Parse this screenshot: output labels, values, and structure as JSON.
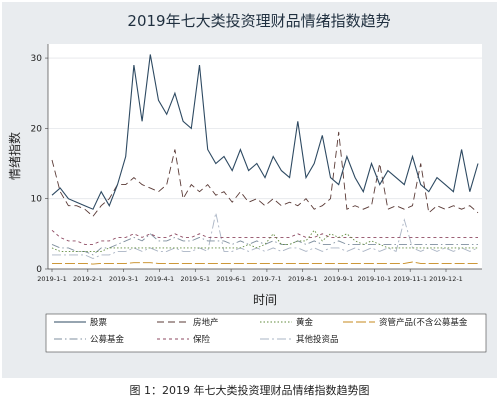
{
  "caption": "图 1：2019 年七大类投资理财品情绪指数趋势图",
  "chart_data": {
    "type": "line",
    "title": "2019年七大类投资理财品情绪指数趋势",
    "xlabel": "时间",
    "ylabel": "情绪指数",
    "ylim": [
      0,
      32
    ],
    "yticks": [
      0,
      10,
      20,
      30
    ],
    "grid": true,
    "legend": "bottom",
    "x_ticks": [
      "2019-1-1",
      "2019-2-1",
      "2019-3-1",
      "2019-4-1",
      "2019-5-1",
      "2019-6-1",
      "2019-7-1",
      "2019-8-1",
      "2019-9-1",
      "2019-10-1",
      "2019-11-1",
      "2019-12-1"
    ],
    "x": [
      "2019-1-1",
      "2019-1-8",
      "2019-1-15",
      "2019-1-22",
      "2019-1-29",
      "2019-2-5",
      "2019-2-12",
      "2019-2-19",
      "2019-2-26",
      "2019-3-5",
      "2019-3-12",
      "2019-3-19",
      "2019-3-26",
      "2019-4-2",
      "2019-4-9",
      "2019-4-16",
      "2019-4-23",
      "2019-4-30",
      "2019-5-7",
      "2019-5-14",
      "2019-5-21",
      "2019-5-28",
      "2019-6-4",
      "2019-6-11",
      "2019-6-18",
      "2019-6-25",
      "2019-7-2",
      "2019-7-9",
      "2019-7-16",
      "2019-7-23",
      "2019-7-30",
      "2019-8-6",
      "2019-8-13",
      "2019-8-20",
      "2019-8-27",
      "2019-9-3",
      "2019-9-10",
      "2019-9-17",
      "2019-9-24",
      "2019-10-1",
      "2019-10-8",
      "2019-10-15",
      "2019-10-22",
      "2019-10-29",
      "2019-11-5",
      "2019-11-12",
      "2019-11-19",
      "2019-11-26",
      "2019-12-3",
      "2019-12-10",
      "2019-12-17",
      "2019-12-24",
      "2019-12-31"
    ],
    "series": [
      {
        "name": "股票",
        "color": "#2e4a62",
        "dash": "solid",
        "values": [
          10.5,
          11.5,
          10,
          9.5,
          9,
          8.5,
          11,
          9,
          12,
          16,
          29,
          21,
          30.5,
          24,
          22,
          25,
          21,
          20,
          29,
          17,
          15,
          16,
          14,
          17,
          14,
          15,
          13,
          16,
          14,
          13,
          21,
          13,
          15,
          19,
          13,
          12,
          16,
          13,
          11,
          15,
          12,
          14,
          13,
          12,
          16,
          12,
          11,
          13,
          12,
          11,
          17,
          11,
          15
        ]
      },
      {
        "name": "房地产",
        "color": "#5a3a36",
        "dash": "7,4",
        "values": [
          15.5,
          11,
          9,
          9,
          8.5,
          7.5,
          9,
          10,
          12,
          12,
          13,
          12,
          11.5,
          11,
          12,
          17,
          10,
          12,
          11,
          12,
          10.5,
          11,
          9.5,
          11,
          9.5,
          10,
          9,
          10,
          9,
          9.5,
          9,
          10,
          8.5,
          9,
          10,
          19.5,
          8.5,
          9,
          8.5,
          9,
          15,
          8.5,
          9,
          8.5,
          9,
          15,
          8,
          9,
          8.5,
          9,
          8.5,
          9,
          8
        ]
      },
      {
        "name": "黄金",
        "color": "#5f8a3a",
        "dash": "1.5,2",
        "values": [
          3,
          2.5,
          2.5,
          2.5,
          2.5,
          2.5,
          2.5,
          3,
          3,
          3,
          3,
          3,
          3,
          3,
          3,
          3,
          3,
          3,
          3,
          3,
          3,
          3,
          3,
          3,
          3.5,
          3,
          3.5,
          5,
          3.5,
          3.5,
          4,
          4,
          5.5,
          4,
          5,
          4.5,
          5,
          4,
          3.5,
          4,
          3.5,
          3,
          3,
          3,
          3,
          3,
          3,
          3,
          3,
          3,
          3,
          3,
          3
        ]
      },
      {
        "name": "资管产品(不含公募基金",
        "color": "#c68a1e",
        "dash": "10,3",
        "values": [
          0.8,
          0.8,
          0.8,
          0.8,
          0.8,
          0.7,
          0.8,
          0.8,
          0.8,
          0.8,
          0.9,
          0.9,
          0.9,
          0.8,
          0.8,
          0.8,
          0.8,
          0.8,
          0.8,
          0.8,
          0.8,
          0.8,
          0.8,
          0.8,
          0.8,
          0.8,
          0.8,
          0.8,
          0.8,
          0.8,
          0.8,
          0.8,
          0.8,
          0.8,
          0.8,
          0.8,
          0.8,
          0.8,
          0.8,
          0.8,
          0.8,
          0.8,
          0.8,
          0.8,
          1,
          0.8,
          0.8,
          0.8,
          0.8,
          0.8,
          0.8,
          0.8,
          0.8
        ]
      },
      {
        "name": "公募基金",
        "color": "#7f8f9f",
        "dash": "8,3,1.5,3",
        "values": [
          3.5,
          3,
          3,
          2.5,
          2.5,
          2,
          3,
          3,
          3.5,
          4,
          4.5,
          4,
          5,
          4,
          4,
          4.5,
          4,
          4,
          4.5,
          4,
          4,
          4,
          3.5,
          4,
          3.5,
          4,
          3.5,
          4,
          3.5,
          3.5,
          4,
          3.5,
          4,
          3.5,
          3.5,
          4,
          3.5,
          3.5,
          3.5,
          3.5,
          3.5,
          3.5,
          3.5,
          3.5,
          3.5,
          3.5,
          3.5,
          3.5,
          3.5,
          3.5,
          3.5,
          3.5,
          3.5
        ]
      },
      {
        "name": "保险",
        "color": "#8e4a62",
        "dash": "3,3",
        "values": [
          5.5,
          4.5,
          4,
          4,
          3.5,
          3.5,
          4,
          4,
          4.5,
          4.5,
          5,
          4.5,
          5,
          4.5,
          4.5,
          5,
          4.5,
          4.5,
          5,
          4.5,
          4.5,
          4.5,
          4.5,
          4.5,
          4.5,
          4.5,
          4.5,
          4.5,
          4.5,
          4.5,
          5,
          4.5,
          4.5,
          5,
          4.5,
          4.5,
          4.5,
          4.5,
          4.5,
          4.5,
          4.5,
          4.5,
          4.5,
          4.5,
          4.5,
          4.5,
          4.5,
          4.5,
          4.5,
          4.5,
          4.5,
          4.5,
          4.5
        ]
      },
      {
        "name": "其他投资品",
        "color": "#aab4c4",
        "dash": "9,3,2,3",
        "values": [
          2,
          2,
          2,
          2,
          2,
          1.5,
          2,
          2,
          2.5,
          2.5,
          3,
          2.5,
          3,
          2.5,
          2.5,
          3,
          2.5,
          2.5,
          3,
          2.5,
          8,
          2.5,
          2.5,
          3,
          2.5,
          3,
          2.5,
          3,
          2.5,
          3,
          3,
          2.5,
          3,
          2.5,
          3,
          3,
          2.5,
          3,
          2.5,
          3,
          2.5,
          3,
          2.5,
          7,
          3,
          2.5,
          3,
          2.5,
          3,
          2.5,
          3,
          2.5,
          3
        ]
      }
    ]
  }
}
